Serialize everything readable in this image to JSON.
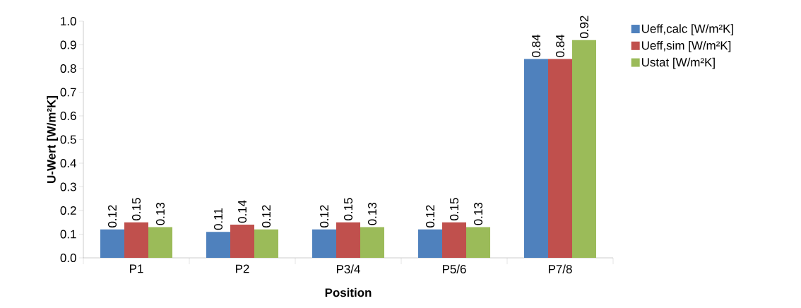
{
  "chart_data": {
    "type": "bar",
    "xlabel": "Position",
    "ylabel": "U-Wert [W/m²K]",
    "categories": [
      "P1",
      "P2",
      "P3/4",
      "P5/6",
      "P7/8"
    ],
    "series": [
      {
        "name": "Ueff,calc [W/m²K]",
        "color": "#4f81bd",
        "values": [
          0.12,
          0.11,
          0.12,
          0.12,
          0.84
        ]
      },
      {
        "name": "Ueff,sim [W/m²K]",
        "color": "#c0504d",
        "values": [
          0.15,
          0.14,
          0.15,
          0.15,
          0.84
        ]
      },
      {
        "name": "Ustat [W/m²K]",
        "color": "#9bbb59",
        "values": [
          0.13,
          0.12,
          0.13,
          0.13,
          0.92
        ]
      }
    ],
    "ylim": [
      0,
      1.0
    ],
    "yticks": [
      {
        "value": 0,
        "label": "0.0"
      },
      0.1,
      0.2,
      0.3,
      0.4,
      0.5,
      0.6,
      0.7,
      0.8,
      0.9,
      {
        "value": 1.0,
        "label": "1.0"
      }
    ],
    "data_labels": true,
    "legend": "right",
    "grid": false
  }
}
